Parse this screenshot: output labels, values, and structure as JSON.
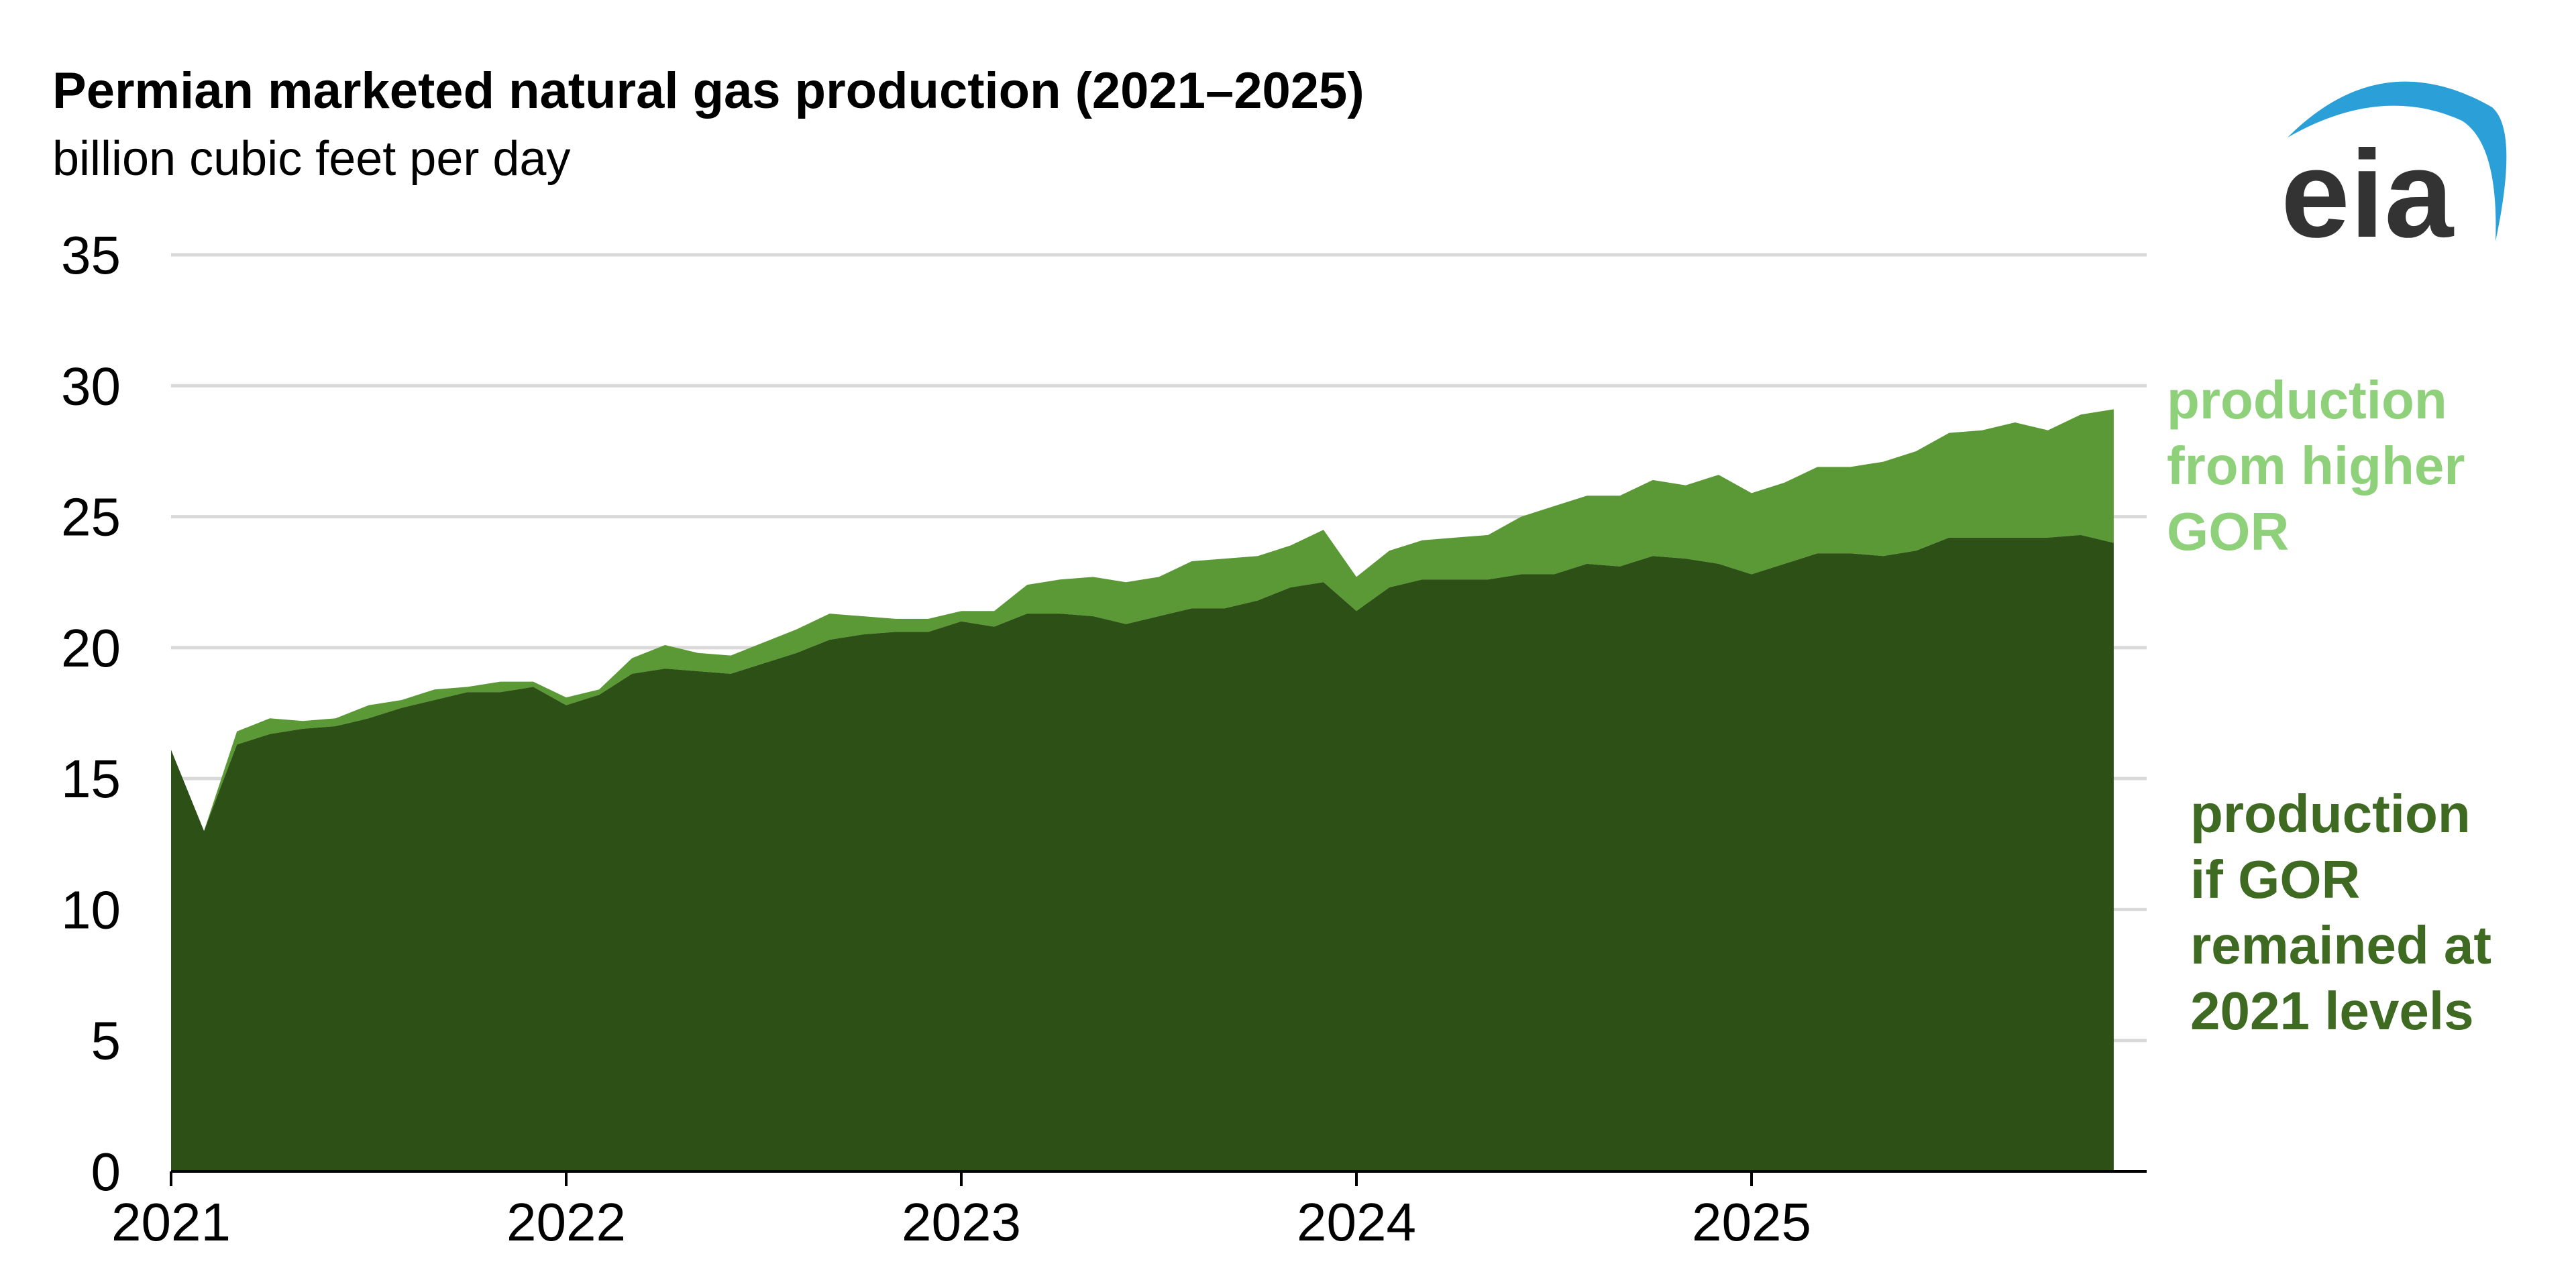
{
  "title": "Permian marketed natural gas production (2021–2025)",
  "subtitle": "billion cubic feet per day",
  "logo_text": "eia",
  "colors": {
    "base": "#2d5016",
    "higher": "#5b9936",
    "higher_label": "#8fd17b",
    "base_label": "#3f6a22",
    "grid": "#d9d9d9",
    "logo_text": "#333333",
    "logo_arc": "#2a9fd8"
  },
  "legend": {
    "higher": [
      "production",
      "from higher",
      "GOR"
    ],
    "base": [
      "production",
      "if GOR",
      "remained at",
      "2021 levels"
    ]
  },
  "chart_data": {
    "type": "area",
    "stacked": true,
    "x_start": "2021-01",
    "x_end": "2025-12",
    "frequency": "monthly",
    "x_tick_labels": [
      "2021",
      "2022",
      "2023",
      "2024",
      "2025"
    ],
    "y_ticks": [
      0,
      5,
      10,
      15,
      20,
      25,
      30,
      35
    ],
    "ylim": [
      0,
      35
    ],
    "grid": "horizontal",
    "series": [
      {
        "name": "production if GOR remained at 2021 levels",
        "values": [
          16.1,
          13.0,
          16.3,
          16.7,
          16.9,
          17.0,
          17.3,
          17.7,
          18.0,
          18.3,
          18.3,
          18.5,
          17.8,
          18.2,
          19.0,
          19.2,
          19.1,
          19.0,
          19.4,
          19.8,
          20.3,
          20.5,
          20.6,
          20.6,
          21.0,
          20.8,
          21.3,
          21.3,
          21.2,
          20.9,
          21.2,
          21.5,
          21.5,
          21.8,
          22.3,
          22.5,
          21.4,
          22.3,
          22.6,
          22.6,
          22.6,
          22.8,
          22.8,
          23.2,
          23.1,
          23.5,
          23.4,
          23.2,
          22.8,
          23.2,
          23.6,
          23.6,
          23.5,
          23.7,
          24.2,
          24.2,
          24.2,
          24.2,
          24.3,
          24.0
        ]
      },
      {
        "name": "production from higher GOR",
        "values": [
          0.0,
          0.0,
          0.5,
          0.6,
          0.3,
          0.3,
          0.5,
          0.3,
          0.4,
          0.2,
          0.4,
          0.2,
          0.3,
          0.2,
          0.6,
          0.9,
          0.7,
          0.7,
          0.8,
          0.9,
          1.0,
          0.7,
          0.5,
          0.5,
          0.4,
          0.6,
          1.1,
          1.3,
          1.5,
          1.6,
          1.5,
          1.8,
          1.9,
          1.7,
          1.6,
          2.0,
          1.3,
          1.4,
          1.5,
          1.6,
          1.7,
          2.2,
          2.6,
          2.6,
          2.7,
          2.9,
          2.8,
          3.4,
          3.1,
          3.1,
          3.3,
          3.3,
          3.6,
          3.8,
          4.0,
          4.1,
          4.4,
          4.1,
          4.6,
          5.1
        ]
      }
    ]
  }
}
